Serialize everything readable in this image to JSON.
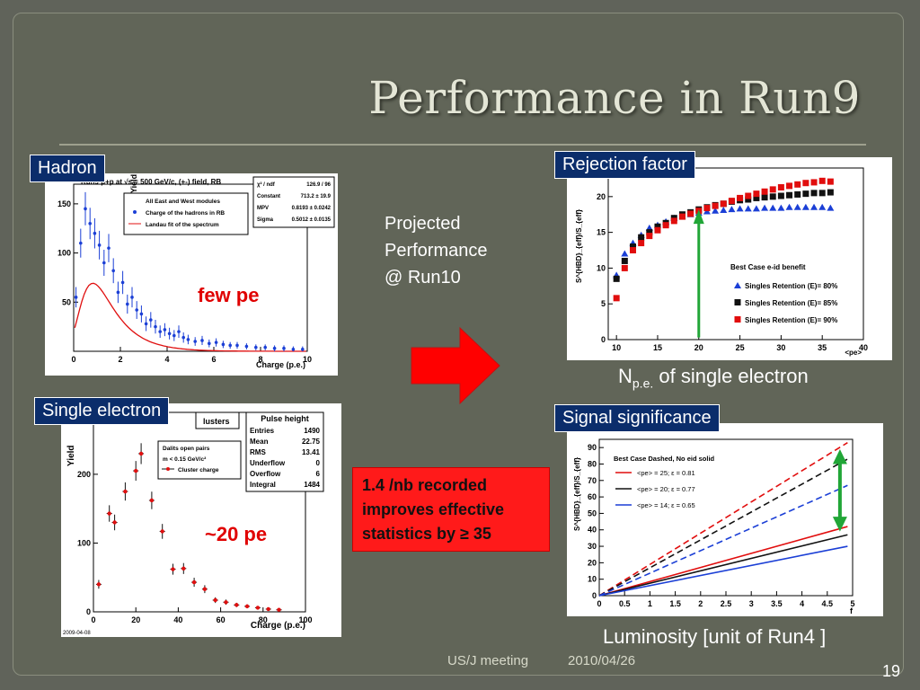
{
  "slide": {
    "title": "Performance in Run9",
    "labels": {
      "hadron": "Hadron",
      "single_electron": "Single electron",
      "rejection": "Rejection factor",
      "signal": "Signal significance"
    },
    "projected_lines": [
      "Projected",
      "Performance",
      "@ Run10"
    ],
    "note_lines": [
      "1.4 /nb recorded",
      "improves effective",
      "statistics by ≥ 35"
    ],
    "npe_caption": {
      "main": "N",
      "sub": "p.e.",
      "rest": " of single electron"
    },
    "lumi_caption": "Luminosity [unit of Run4 ]",
    "footer_left": "US/J meeting",
    "footer_date": "2010/04/26",
    "page_number": "19",
    "few_pe": "few pe",
    "twenty_pe": "~20 pe"
  },
  "chart_data": [
    {
      "type": "scatter",
      "title": "Run9 p+p at √s = 500 GeV/c, (+-) field, RB",
      "xlabel": "Charge (p.e.)",
      "ylabel": "Yield",
      "xlim": [
        0,
        10
      ],
      "ylim": [
        0,
        170
      ],
      "xticks": [
        "0",
        "2",
        "4",
        "6",
        "8",
        "10"
      ],
      "yticks": [
        "50",
        "100",
        "150"
      ],
      "legend": [
        "All East and West modules",
        "Charge of the hadrons in RB",
        "Landau fit of the spectrum"
      ],
      "fit_stats": [
        [
          "χ² / ndf",
          "126.9 / 96"
        ],
        [
          "Constant",
          "713.2 ± 19.9"
        ],
        [
          "MPV",
          "0.8193 ± 0.0242"
        ],
        [
          "Sigma",
          "0.5012 ± 0.0135"
        ]
      ],
      "series": [
        {
          "name": "Charge of the hadrons in RB",
          "x": [
            0.1,
            0.3,
            0.5,
            0.7,
            0.9,
            1.1,
            1.3,
            1.5,
            1.7,
            1.9,
            2.1,
            2.3,
            2.5,
            2.7,
            2.9,
            3.1,
            3.3,
            3.5,
            3.7,
            3.9,
            4.1,
            4.3,
            4.5,
            4.7,
            4.9,
            5.2,
            5.5,
            5.8,
            6.1,
            6.4,
            6.7,
            7.0,
            7.4,
            7.8,
            8.2,
            8.6,
            9.0,
            9.4,
            9.8
          ],
          "y": [
            55,
            110,
            145,
            130,
            120,
            108,
            90,
            105,
            82,
            60,
            70,
            48,
            55,
            42,
            38,
            28,
            32,
            25,
            20,
            22,
            18,
            16,
            20,
            14,
            12,
            10,
            11,
            8,
            9,
            7,
            6,
            6,
            5,
            4,
            4,
            3,
            3,
            2,
            2
          ]
        }
      ]
    },
    {
      "type": "scatter",
      "xlabel": "Charge (p.e.)",
      "ylabel": "Yield",
      "xlim": [
        0,
        100
      ],
      "ylim": [
        0,
        290
      ],
      "xticks": [
        "0",
        "20",
        "40",
        "60",
        "80",
        "100"
      ],
      "yticks": [
        "0",
        "100",
        "200"
      ],
      "stats_title": "Pulse height",
      "stats": [
        [
          "Entries",
          "1490"
        ],
        [
          "Mean",
          "22.75"
        ],
        [
          "RMS",
          "13.41"
        ],
        [
          "Underflow",
          "0"
        ],
        [
          "Overflow",
          "6"
        ],
        [
          "Integral",
          "1484"
        ]
      ],
      "legend": [
        "Dalits open pairs",
        "m < 0.15 GeV/c²",
        "Cluster charge"
      ],
      "partial_title": "lusters",
      "date_stamp": "2009-04-08",
      "series": [
        {
          "name": "Cluster charge",
          "x": [
            2.5,
            7.5,
            10,
            15,
            20,
            22.5,
            27.5,
            32.5,
            37.5,
            42.5,
            47.5,
            52.5,
            57.5,
            62.5,
            67.5,
            72.5,
            77.5,
            82.5,
            87.5
          ],
          "y": [
            40,
            143,
            130,
            175,
            205,
            230,
            162,
            117,
            62,
            63,
            43,
            33,
            17,
            14,
            10,
            8,
            6,
            4,
            3
          ]
        }
      ]
    },
    {
      "type": "scatter",
      "title": "Best Case e-id benefit",
      "xlabel": "<pe>",
      "ylabel": "S^{HBD}_{eff}/S_{eff}",
      "xlim": [
        9,
        40
      ],
      "ylim": [
        0,
        24
      ],
      "xticks": [
        "10",
        "15",
        "20",
        "25",
        "30",
        "35",
        "40"
      ],
      "yticks": [
        "0",
        "5",
        "10",
        "15",
        "20"
      ],
      "series": [
        {
          "name": "Singles Retention (E)= 80%",
          "color": "#1b3fd6",
          "x": [
            10,
            11,
            12,
            13,
            14,
            15,
            16,
            17,
            18,
            19,
            20,
            21,
            22,
            23,
            24,
            25,
            26,
            27,
            28,
            29,
            30,
            31,
            32,
            33,
            34,
            35,
            36
          ],
          "y": [
            9,
            12,
            13.5,
            14.6,
            15.6,
            16,
            16.5,
            17,
            17.2,
            17.5,
            17.7,
            17.9,
            18,
            18.1,
            18.2,
            18.3,
            18.3,
            18.3,
            18.4,
            18.4,
            18.4,
            18.5,
            18.5,
            18.5,
            18.5,
            18.5,
            18.4
          ]
        },
        {
          "name": "Singles Retention (E)= 85%",
          "color": "#111111",
          "x": [
            10,
            11,
            12,
            13,
            14,
            15,
            16,
            17,
            18,
            19,
            20,
            21,
            22,
            23,
            24,
            25,
            26,
            27,
            28,
            29,
            30,
            31,
            32,
            33,
            34,
            35,
            36
          ],
          "y": [
            8.5,
            11,
            13,
            14.3,
            15,
            15.8,
            16.3,
            17,
            17.5,
            17.8,
            18.2,
            18.5,
            18.8,
            19,
            19.3,
            19.5,
            19.6,
            19.8,
            19.9,
            20,
            20.1,
            20.2,
            20.3,
            20.4,
            20.5,
            20.5,
            20.6
          ]
        },
        {
          "name": "Singles Retention (E)= 90%",
          "color": "#e10d0d",
          "x": [
            10,
            11,
            12,
            13,
            14,
            15,
            16,
            17,
            18,
            19,
            20,
            21,
            22,
            23,
            24,
            25,
            26,
            27,
            28,
            29,
            30,
            31,
            32,
            33,
            34,
            35,
            36
          ],
          "y": [
            5.8,
            10,
            12.5,
            13.5,
            14.5,
            15.3,
            16,
            16.6,
            17.2,
            17.6,
            18,
            18.4,
            18.7,
            19,
            19.4,
            19.8,
            20.1,
            20.4,
            20.7,
            21,
            21.3,
            21.5,
            21.7,
            21.9,
            22,
            22.2,
            22.1
          ]
        }
      ],
      "legend_position": "bottom-right"
    },
    {
      "type": "line",
      "title": "Best Case Dashed, No eid solid",
      "xlabel": "f",
      "ylabel": "S^{HBD}_{eff}/S_{eff}",
      "xlim": [
        0,
        5
      ],
      "ylim": [
        0,
        95
      ],
      "xticks": [
        "0",
        "0.5",
        "1",
        "1.5",
        "2",
        "2.5",
        "3",
        "3.5",
        "4",
        "4.5",
        "5"
      ],
      "yticks": [
        "0",
        "10",
        "20",
        "30",
        "40",
        "50",
        "60",
        "70",
        "80",
        "90"
      ],
      "series": [
        {
          "name": "<pe> = 25; ε = 0.81",
          "color": "#e10d0d",
          "x": [
            0,
            4.9
          ],
          "y_dashed": [
            0,
            93
          ],
          "y_solid": [
            0,
            42
          ]
        },
        {
          "name": "<pe> = 20; ε = 0.77",
          "color": "#111111",
          "x": [
            0,
            4.9
          ],
          "y_dashed": [
            0,
            83
          ],
          "y_solid": [
            0,
            37
          ]
        },
        {
          "name": "<pe> = 14; ε = 0.65",
          "color": "#1b3fd6",
          "x": [
            0,
            4.9
          ],
          "y_dashed": [
            0,
            67
          ],
          "y_solid": [
            0,
            30
          ]
        }
      ],
      "legend_position": "top-left"
    }
  ]
}
